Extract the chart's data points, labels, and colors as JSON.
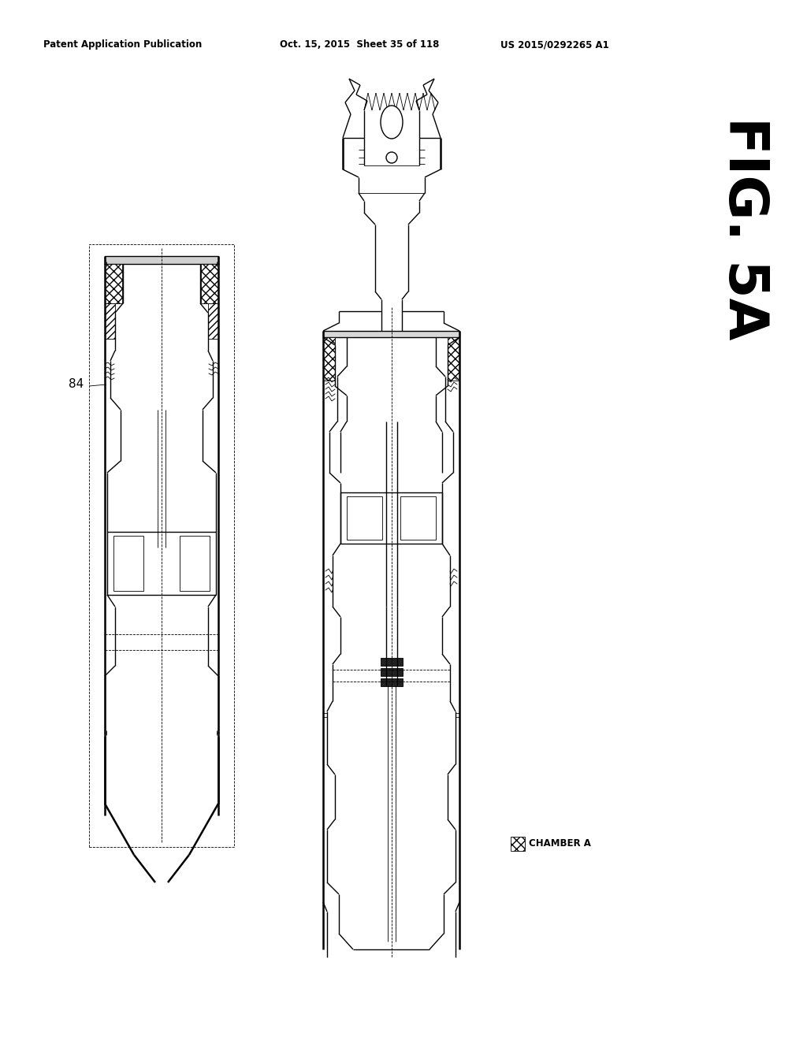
{
  "header_left": "Patent Application Publication",
  "header_mid": "Oct. 15, 2015  Sheet 35 of 118",
  "header_right": "US 2015/0292265 A1",
  "fig_label": "FIG. 5A",
  "label_84": "84",
  "chamber_label": "CHAMBER A",
  "bg_color": "#ffffff",
  "line_color": "#000000"
}
